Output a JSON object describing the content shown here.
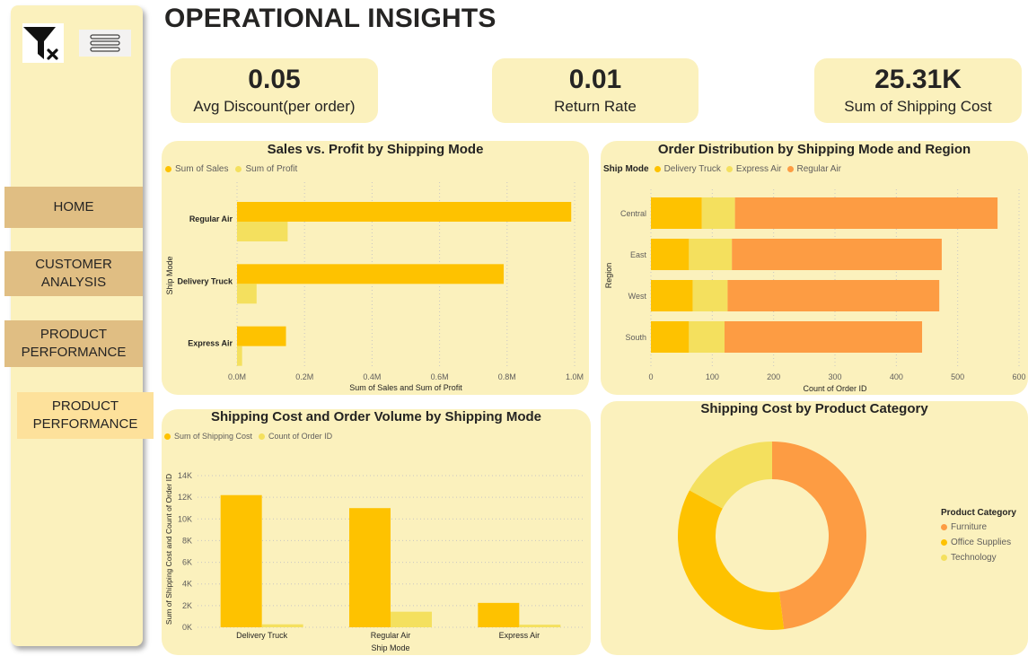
{
  "page": {
    "title": "OPERATIONAL INSIGHTS"
  },
  "icons": {
    "filter": "filter-clear-icon",
    "menu": "hamburger-menu-icon"
  },
  "nav": [
    {
      "label": "HOME"
    },
    {
      "label": "CUSTOMER\nANALYSIS"
    },
    {
      "label": "PRODUCT\nPERFORMANCE"
    },
    {
      "label": "PRODUCT\nPERFORMANCE"
    }
  ],
  "kpis": [
    {
      "value": "0.05",
      "label": "Avg Discount(per order)"
    },
    {
      "value": "0.01",
      "label": "Return Rate"
    },
    {
      "value": "25.31K",
      "label": "Sum of Shipping Cost"
    }
  ],
  "colors": {
    "bg": "#fbf1bd",
    "delivery_truck": "#fec200",
    "express_air": "#f4e05e",
    "regular_air": "#fd9c43",
    "nav": "#e0be83",
    "nav_active": "#fde19b"
  },
  "chart_data": [
    {
      "type": "bar",
      "orientation": "horizontal",
      "title": "Sales vs. Profit by Shipping Mode",
      "categories": [
        "Regular Air",
        "Delivery Truck",
        "Express Air"
      ],
      "series": [
        {
          "name": "Sum of Sales",
          "values": [
            990000,
            790000,
            145000
          ]
        },
        {
          "name": "Sum of Profit",
          "values": [
            150000,
            58000,
            15000
          ]
        }
      ],
      "xlabel": "Sum of Sales and Sum of Profit",
      "ylabel": "Ship Mode",
      "xlim": [
        0,
        1000000
      ],
      "xticks": [
        "0.0M",
        "0.2M",
        "0.4M",
        "0.6M",
        "0.8M",
        "1.0M"
      ],
      "legend": "top-left",
      "grid": true
    },
    {
      "type": "bar",
      "orientation": "horizontal",
      "stacked": true,
      "title": "Order Distribution by Shipping Mode and Region",
      "legend_title": "Ship Mode",
      "categories": [
        "Central",
        "East",
        "West",
        "South"
      ],
      "series": [
        {
          "name": "Delivery Truck",
          "values": [
            83,
            62,
            68,
            62
          ]
        },
        {
          "name": "Express Air",
          "values": [
            54,
            70,
            57,
            58
          ]
        },
        {
          "name": "Regular Air",
          "values": [
            428,
            342,
            345,
            322
          ]
        }
      ],
      "xlabel": "Count of Order ID",
      "ylabel": "Region",
      "xlim": [
        0,
        600
      ],
      "xticks": [
        "0",
        "100",
        "200",
        "300",
        "400",
        "500",
        "600"
      ],
      "legend": "top-left",
      "grid": true
    },
    {
      "type": "bar",
      "title": "Shipping Cost and Order Volume by Shipping Mode",
      "categories": [
        "Delivery Truck",
        "Regular Air",
        "Express Air"
      ],
      "series": [
        {
          "name": "Sum of Shipping Cost",
          "values": [
            12200,
            11000,
            2250
          ]
        },
        {
          "name": "Count of Order ID",
          "values": [
            275,
            1437,
            239
          ]
        }
      ],
      "xlabel": "Ship Mode",
      "ylabel": "Sum of Shipping Cost and Count of Order ID",
      "ylim": [
        0,
        14000
      ],
      "yticks": [
        "0K",
        "2K",
        "4K",
        "6K",
        "8K",
        "10K",
        "12K",
        "14K"
      ],
      "legend": "top-left",
      "grid": true
    },
    {
      "type": "pie",
      "donut": true,
      "title": "Shipping Cost by Product Category",
      "legend_title": "Product Category",
      "categories": [
        "Furniture",
        "Office Supplies",
        "Technology"
      ],
      "values": [
        48,
        35,
        17
      ],
      "legend": "right"
    }
  ]
}
